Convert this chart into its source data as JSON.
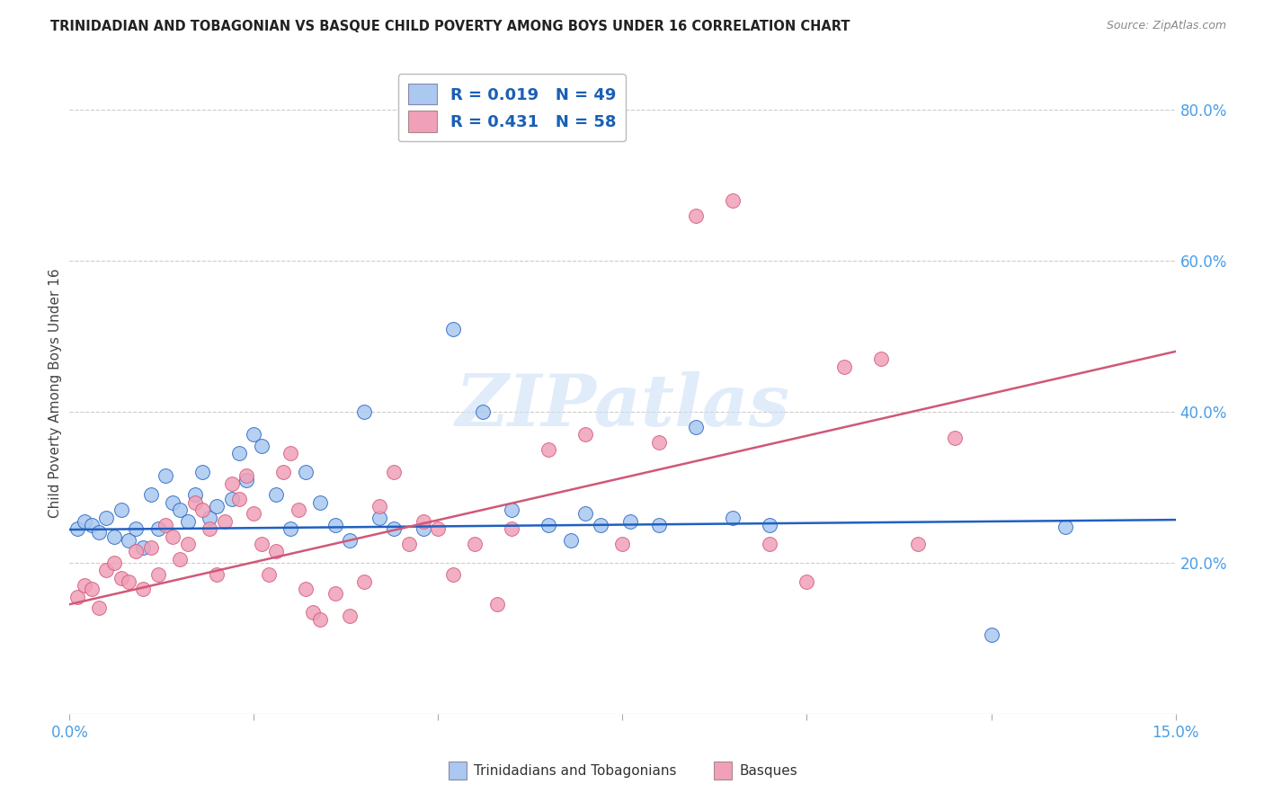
{
  "title": "TRINIDADIAN AND TOBAGONIAN VS BASQUE CHILD POVERTY AMONG BOYS UNDER 16 CORRELATION CHART",
  "source": "Source: ZipAtlas.com",
  "ylabel": "Child Poverty Among Boys Under 16",
  "xlim": [
    0.0,
    0.15
  ],
  "ylim": [
    0.0,
    0.85
  ],
  "xticks": [
    0.0,
    0.025,
    0.05,
    0.075,
    0.1,
    0.125,
    0.15
  ],
  "xticklabels": [
    "0.0%",
    "",
    "",
    "",
    "",
    "",
    "15.0%"
  ],
  "yticks_right": [
    0.2,
    0.4,
    0.6,
    0.8
  ],
  "ytick_labels_right": [
    "20.0%",
    "40.0%",
    "60.0%",
    "80.0%"
  ],
  "blue_color": "#aac8f0",
  "pink_color": "#f0a0b8",
  "blue_line_color": "#2060c0",
  "pink_line_color": "#d05878",
  "title_color": "#222222",
  "label_color": "#4a9de8",
  "watermark": "ZIPatlas",
  "blue_trend": [
    0.0,
    0.244,
    0.15,
    0.257
  ],
  "pink_trend": [
    0.0,
    0.145,
    0.15,
    0.48
  ],
  "blue_scatter_x": [
    0.001,
    0.002,
    0.003,
    0.004,
    0.005,
    0.006,
    0.007,
    0.008,
    0.009,
    0.01,
    0.011,
    0.012,
    0.013,
    0.014,
    0.015,
    0.016,
    0.017,
    0.018,
    0.019,
    0.02,
    0.022,
    0.023,
    0.024,
    0.025,
    0.026,
    0.028,
    0.03,
    0.032,
    0.034,
    0.036,
    0.038,
    0.04,
    0.042,
    0.044,
    0.048,
    0.052,
    0.056,
    0.06,
    0.065,
    0.068,
    0.07,
    0.072,
    0.076,
    0.08,
    0.085,
    0.09,
    0.095,
    0.125,
    0.135
  ],
  "blue_scatter_y": [
    0.245,
    0.255,
    0.25,
    0.24,
    0.26,
    0.235,
    0.27,
    0.23,
    0.245,
    0.22,
    0.29,
    0.245,
    0.315,
    0.28,
    0.27,
    0.255,
    0.29,
    0.32,
    0.26,
    0.275,
    0.285,
    0.345,
    0.31,
    0.37,
    0.355,
    0.29,
    0.245,
    0.32,
    0.28,
    0.25,
    0.23,
    0.4,
    0.26,
    0.245,
    0.245,
    0.51,
    0.4,
    0.27,
    0.25,
    0.23,
    0.265,
    0.25,
    0.255,
    0.25,
    0.38,
    0.26,
    0.25,
    0.105,
    0.248
  ],
  "pink_scatter_x": [
    0.001,
    0.002,
    0.003,
    0.004,
    0.005,
    0.006,
    0.007,
    0.008,
    0.009,
    0.01,
    0.011,
    0.012,
    0.013,
    0.014,
    0.015,
    0.016,
    0.017,
    0.018,
    0.019,
    0.02,
    0.021,
    0.022,
    0.023,
    0.024,
    0.025,
    0.026,
    0.027,
    0.028,
    0.029,
    0.03,
    0.031,
    0.032,
    0.033,
    0.034,
    0.036,
    0.038,
    0.04,
    0.042,
    0.044,
    0.046,
    0.048,
    0.05,
    0.052,
    0.055,
    0.058,
    0.06,
    0.065,
    0.07,
    0.075,
    0.08,
    0.085,
    0.09,
    0.095,
    0.1,
    0.105,
    0.11,
    0.115,
    0.12
  ],
  "pink_scatter_y": [
    0.155,
    0.17,
    0.165,
    0.14,
    0.19,
    0.2,
    0.18,
    0.175,
    0.215,
    0.165,
    0.22,
    0.185,
    0.25,
    0.235,
    0.205,
    0.225,
    0.28,
    0.27,
    0.245,
    0.185,
    0.255,
    0.305,
    0.285,
    0.315,
    0.265,
    0.225,
    0.185,
    0.215,
    0.32,
    0.345,
    0.27,
    0.165,
    0.135,
    0.125,
    0.16,
    0.13,
    0.175,
    0.275,
    0.32,
    0.225,
    0.255,
    0.245,
    0.185,
    0.225,
    0.145,
    0.245,
    0.35,
    0.37,
    0.225,
    0.36,
    0.66,
    0.68,
    0.225,
    0.175,
    0.46,
    0.47,
    0.225,
    0.365
  ]
}
